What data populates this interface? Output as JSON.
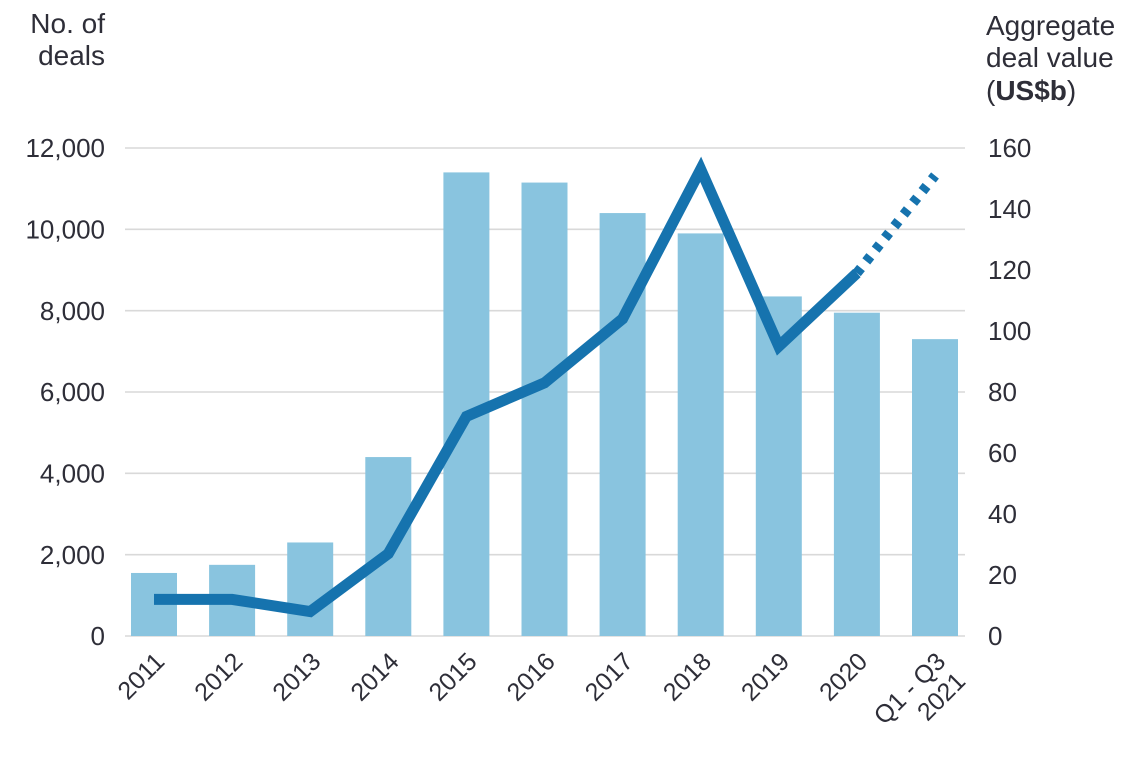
{
  "colors": {
    "background": "#ffffff",
    "bar": "#89c4df",
    "line": "#1673ae",
    "grid": "#d9d9d9",
    "text": "#2e2e38"
  },
  "chart_data": {
    "type": "bar",
    "subtype": "combo-bar-line-dual-axis",
    "title": "",
    "legend": "none",
    "grid": "horizontal gridlines at left-axis ticks",
    "categories": [
      "2011",
      "2012",
      "2013",
      "2014",
      "2015",
      "2016",
      "2017",
      "2018",
      "2019",
      "2020",
      [
        "Q1 - Q3",
        "2021"
      ]
    ],
    "series": [
      {
        "name": "No. of deals",
        "type": "bar",
        "axis": "left",
        "values": [
          1550,
          1750,
          2300,
          4400,
          11400,
          11150,
          10400,
          9900,
          8350,
          7950,
          7300
        ]
      },
      {
        "name": "Aggregate deal value (US$b)",
        "type": "line",
        "axis": "right",
        "values": [
          12,
          12,
          8,
          27,
          72,
          83,
          104,
          153,
          95,
          119,
          151
        ],
        "dashed_from_index": 9
      }
    ],
    "left_axis": {
      "title_line1": "No. of",
      "title_line2": "deals",
      "min": 0,
      "max": 12000,
      "tick_values": [
        12000,
        10000,
        8000,
        6000,
        4000,
        2000,
        0
      ],
      "tick_labels": [
        "12,000",
        "10,000",
        "8,000",
        "6,000",
        "4,000",
        "2,000",
        "0"
      ]
    },
    "right_axis": {
      "title_line1": "Aggregate",
      "title_line2": "deal value",
      "title_unit_open": "(",
      "title_unit": "US$b",
      "title_unit_close": ")",
      "min": 0,
      "max": 160,
      "tick_values": [
        160,
        140,
        120,
        100,
        80,
        60,
        40,
        20,
        0
      ],
      "tick_labels": [
        "160",
        "140",
        "120",
        "100",
        "80",
        "60",
        "40",
        "20",
        "0"
      ]
    }
  }
}
